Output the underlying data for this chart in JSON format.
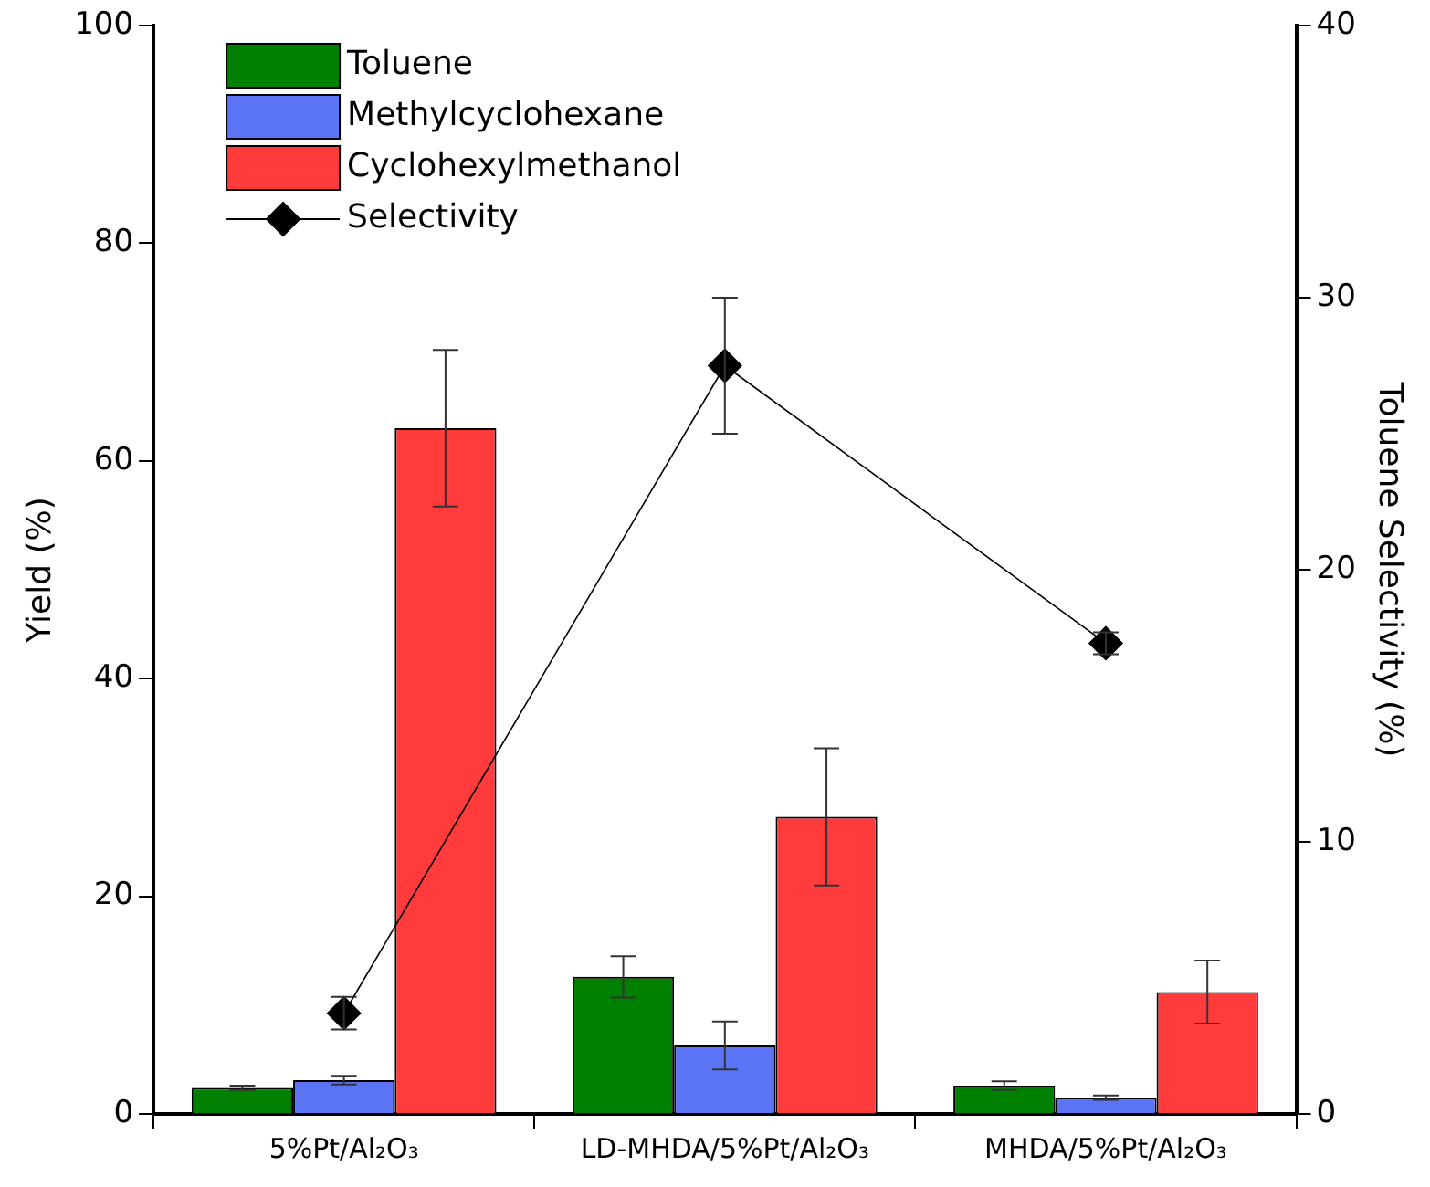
{
  "chart_data": {
    "type": "bar",
    "ylabel": "Yield (%)",
    "y2label": "Toluene Selectivity (%)",
    "categories": [
      "5%Pt/Al₂O₃",
      "LD-MHDA/5%Pt/Al₂O₃",
      "MHDA/5%Pt/Al₂O₃"
    ],
    "series": [
      {
        "name": "Toluene",
        "color": "#008000",
        "values": [
          2.4,
          12.6,
          2.6
        ],
        "errors": [
          0.2,
          1.9,
          0.4
        ]
      },
      {
        "name": "Methylcyclohexane",
        "color": "#5b73f5",
        "values": [
          3.1,
          6.3,
          1.5
        ],
        "errors": [
          0.4,
          2.2,
          0.2
        ]
      },
      {
        "name": "Cyclohexylmethanol",
        "color": "#ff3b3b",
        "values": [
          63.0,
          27.3,
          11.2
        ],
        "errors": [
          7.2,
          6.3,
          2.9
        ]
      },
      {
        "name": "Selectivity",
        "type": "line",
        "axis": "y2",
        "color": "#000000",
        "marker": "diamond",
        "values": [
          3.7,
          27.5,
          17.3
        ],
        "errors": [
          0.6,
          2.5,
          0.4
        ]
      }
    ],
    "ylim": [
      0,
      100
    ],
    "yticks": [
      0,
      20,
      40,
      60,
      80,
      100
    ],
    "y2lim": [
      0,
      40
    ],
    "y2ticks": [
      0,
      10,
      20,
      30,
      40
    ],
    "grid": false,
    "legend": "top left",
    "line_style": "solid"
  }
}
